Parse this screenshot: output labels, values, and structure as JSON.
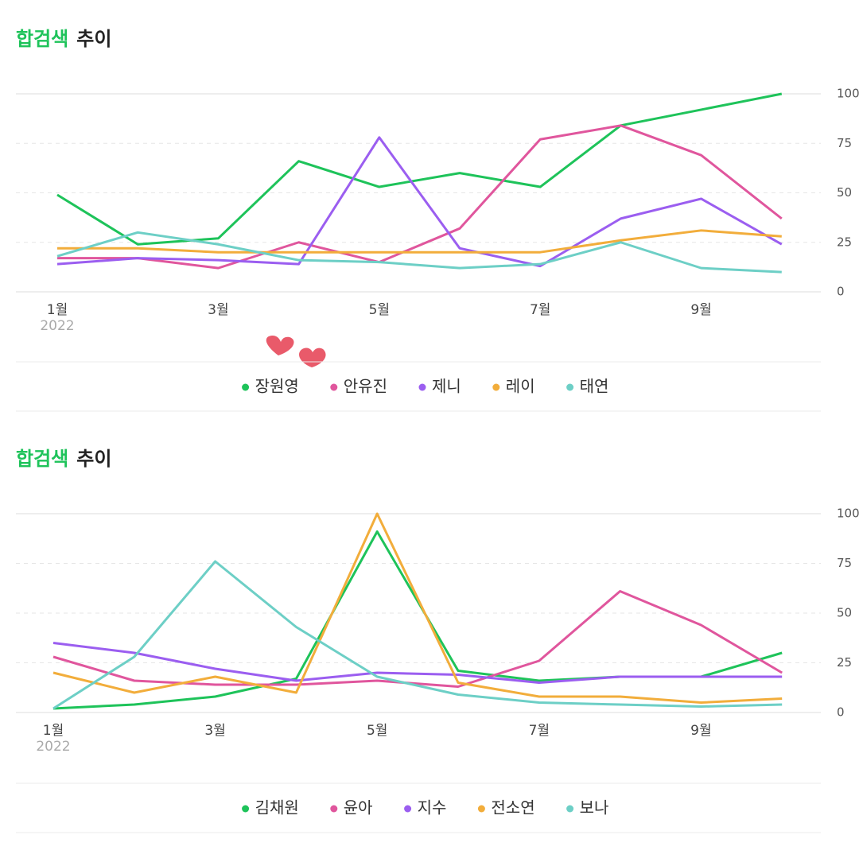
{
  "chart_data": [
    {
      "type": "line",
      "title_highlight": "합검색",
      "title": "추이",
      "categories": [
        "1월",
        null,
        "3월",
        null,
        "5월",
        null,
        "7월",
        null,
        "9월",
        null
      ],
      "x_sublabel": "2022",
      "ylim": [
        0,
        100
      ],
      "yticks": [
        0,
        25,
        50,
        75,
        100
      ],
      "grid": true,
      "series": [
        {
          "name": "장원영",
          "color": "#1ec35a",
          "values": [
            49,
            24,
            27,
            66,
            53,
            60,
            53,
            84,
            92,
            100
          ]
        },
        {
          "name": "안유진",
          "color": "#e0569d",
          "values": [
            17,
            17,
            12,
            25,
            15,
            32,
            77,
            84,
            69,
            37
          ]
        },
        {
          "name": "제니",
          "color": "#9b5ef0",
          "values": [
            14,
            17,
            16,
            14,
            78,
            22,
            13,
            37,
            47,
            24
          ]
        },
        {
          "name": "레이",
          "color": "#f2ad3b",
          "values": [
            22,
            22,
            20,
            20,
            20,
            20,
            20,
            26,
            31,
            28
          ]
        },
        {
          "name": "태연",
          "color": "#6dcfc6",
          "values": [
            18,
            30,
            24,
            16,
            15,
            12,
            14,
            25,
            12,
            10
          ]
        }
      ]
    },
    {
      "type": "line",
      "title_highlight": "합검색",
      "title": "추이",
      "categories": [
        "1월",
        null,
        "3월",
        null,
        "5월",
        null,
        "7월",
        null,
        "9월",
        null
      ],
      "x_sublabel": "2022",
      "ylim": [
        0,
        100
      ],
      "yticks": [
        0,
        25,
        50,
        75,
        100
      ],
      "grid": true,
      "series": [
        {
          "name": "김채원",
          "color": "#1ec35a",
          "values": [
            2,
            4,
            8,
            17,
            91,
            21,
            16,
            18,
            18,
            30
          ]
        },
        {
          "name": "윤아",
          "color": "#e0569d",
          "values": [
            28,
            16,
            14,
            14,
            16,
            13,
            26,
            61,
            44,
            20
          ]
        },
        {
          "name": "지수",
          "color": "#9b5ef0",
          "values": [
            35,
            30,
            22,
            16,
            20,
            19,
            15,
            18,
            18,
            18
          ]
        },
        {
          "name": "전소연",
          "color": "#f2ad3b",
          "values": [
            20,
            10,
            18,
            10,
            100,
            15,
            8,
            8,
            5,
            7
          ]
        },
        {
          "name": "보나",
          "color": "#6dcfc6",
          "values": [
            2,
            28,
            76,
            43,
            18,
            9,
            5,
            4,
            3,
            4
          ]
        }
      ]
    }
  ]
}
